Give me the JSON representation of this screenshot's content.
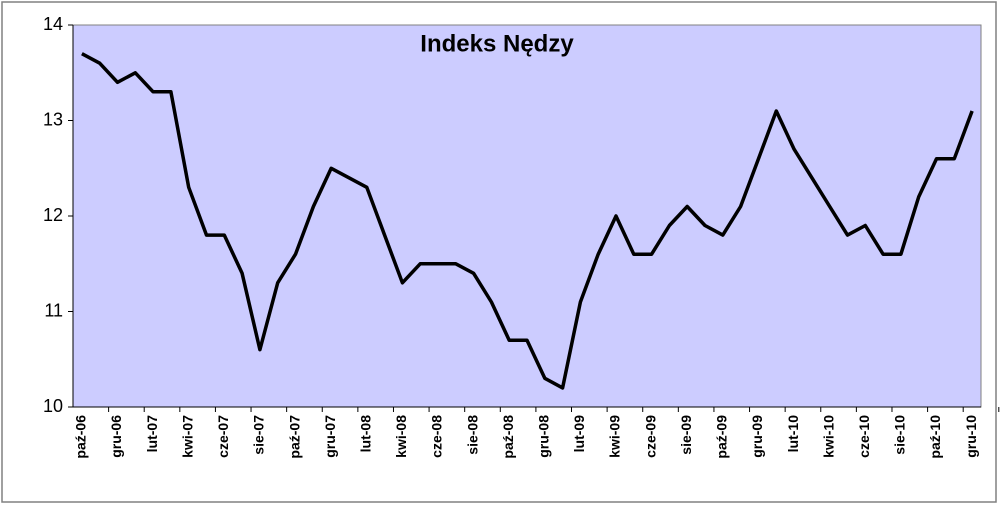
{
  "chart_data": {
    "type": "line",
    "title": "Indeks Nędzy",
    "categories": [
      "paź-06",
      null,
      "gru-06",
      null,
      "lut-07",
      null,
      "kwi-07",
      null,
      "cze-07",
      null,
      "sie-07",
      null,
      "paź-07",
      null,
      "gru-07",
      null,
      "lut-08",
      null,
      "kwi-08",
      null,
      "cze-08",
      null,
      "sie-08",
      null,
      "paź-08",
      null,
      "gru-08",
      null,
      "lut-09",
      null,
      "kwi-09",
      null,
      "cze-09",
      null,
      "sie-09",
      null,
      "paź-09",
      null,
      "gru-09",
      null,
      "lut-10",
      null,
      "kwi-10",
      null,
      "cze-10",
      null,
      "sie-10",
      null,
      "paź-10",
      null,
      "gru-10"
    ],
    "values": [
      13.7,
      13.6,
      13.4,
      13.5,
      13.3,
      13.3,
      12.3,
      11.8,
      11.8,
      11.4,
      10.6,
      11.3,
      11.6,
      12.1,
      12.5,
      12.4,
      12.3,
      11.8,
      11.3,
      11.5,
      11.5,
      11.5,
      11.4,
      11.1,
      10.7,
      10.7,
      10.3,
      10.2,
      11.1,
      11.6,
      12.0,
      11.6,
      11.6,
      11.9,
      12.1,
      11.9,
      11.8,
      12.1,
      12.6,
      13.1,
      12.7,
      12.4,
      12.1,
      11.8,
      11.9,
      11.6,
      11.6,
      12.2,
      12.6,
      12.6,
      13.1
    ],
    "color": "#000000",
    "ylim": [
      10,
      14
    ],
    "yticks": [
      10,
      11,
      12,
      13,
      14
    ],
    "grid": false,
    "background": "#ccccff"
  }
}
